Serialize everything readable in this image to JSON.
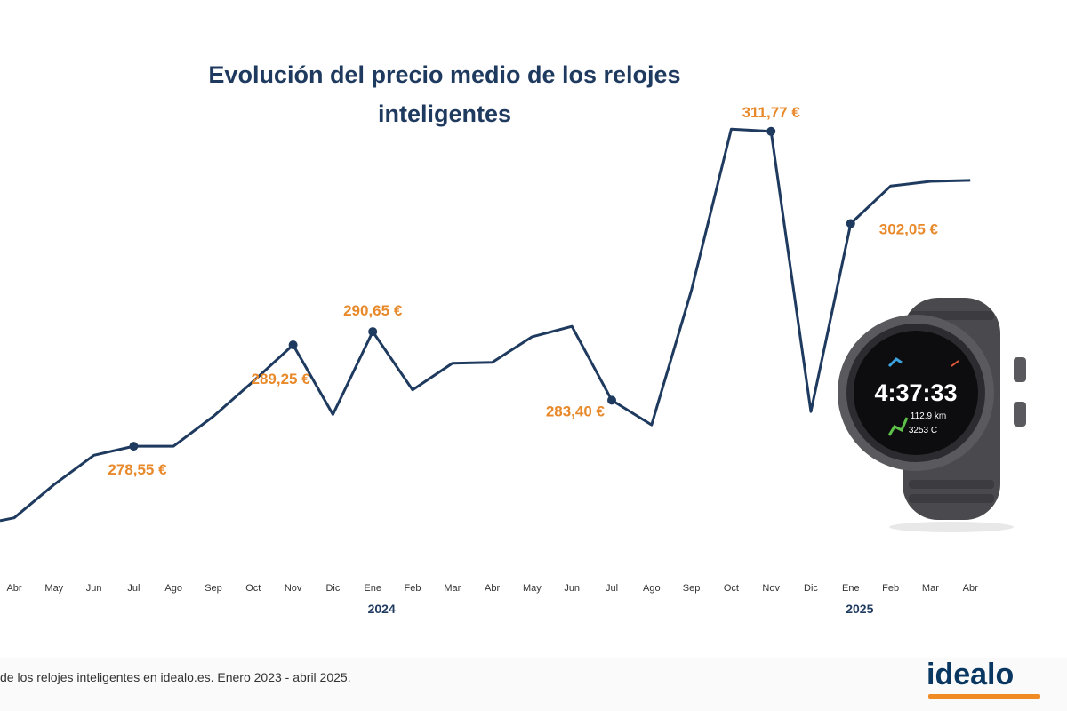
{
  "chart_data": {
    "type": "line",
    "title": "Evolución del precio medio de los relojes inteligentes",
    "categories": [
      "Abr",
      "May",
      "Jun",
      "Jul",
      "Ago",
      "Sep",
      "Oct",
      "Nov",
      "Dic",
      "Ene",
      "Feb",
      "Mar",
      "Abr",
      "May",
      "Jun",
      "Jul",
      "Ago",
      "Sep",
      "Oct",
      "Nov",
      "Dic",
      "Ene",
      "Feb",
      "Mar",
      "Abr"
    ],
    "year_labels": [
      {
        "label": "2024",
        "index": 9
      },
      {
        "label": "2025",
        "index": 21
      }
    ],
    "x_start_value": 270.7,
    "values": [
      271.0,
      274.5,
      277.6,
      278.55,
      278.55,
      281.7,
      285.4,
      289.25,
      281.9,
      290.65,
      284.5,
      287.3,
      287.4,
      290.1,
      291.2,
      283.4,
      280.8,
      295.0,
      312.0,
      311.77,
      282.2,
      302.05,
      306.0,
      306.5,
      306.6
    ],
    "annotations": [
      {
        "index": 3,
        "label": "278,55 €"
      },
      {
        "index": 7,
        "label": "289,25 €"
      },
      {
        "index": 9,
        "label": "290,65 €"
      },
      {
        "index": 15,
        "label": "283,40 €"
      },
      {
        "index": 19,
        "label": "311,77 €"
      },
      {
        "index": 21,
        "label": "302,05 €"
      }
    ],
    "ylim": [
      260,
      320
    ],
    "grid": false,
    "line_color": "#1f3a5f",
    "label_color": "#e8892b"
  },
  "watch": {
    "time": "4:37:33",
    "distance": "112.9 km",
    "calories": "3253 C"
  },
  "footer": {
    "source": "de los relojes inteligentes en idealo.es. Enero 2023 - abril 2025.",
    "logo": "idealo"
  }
}
